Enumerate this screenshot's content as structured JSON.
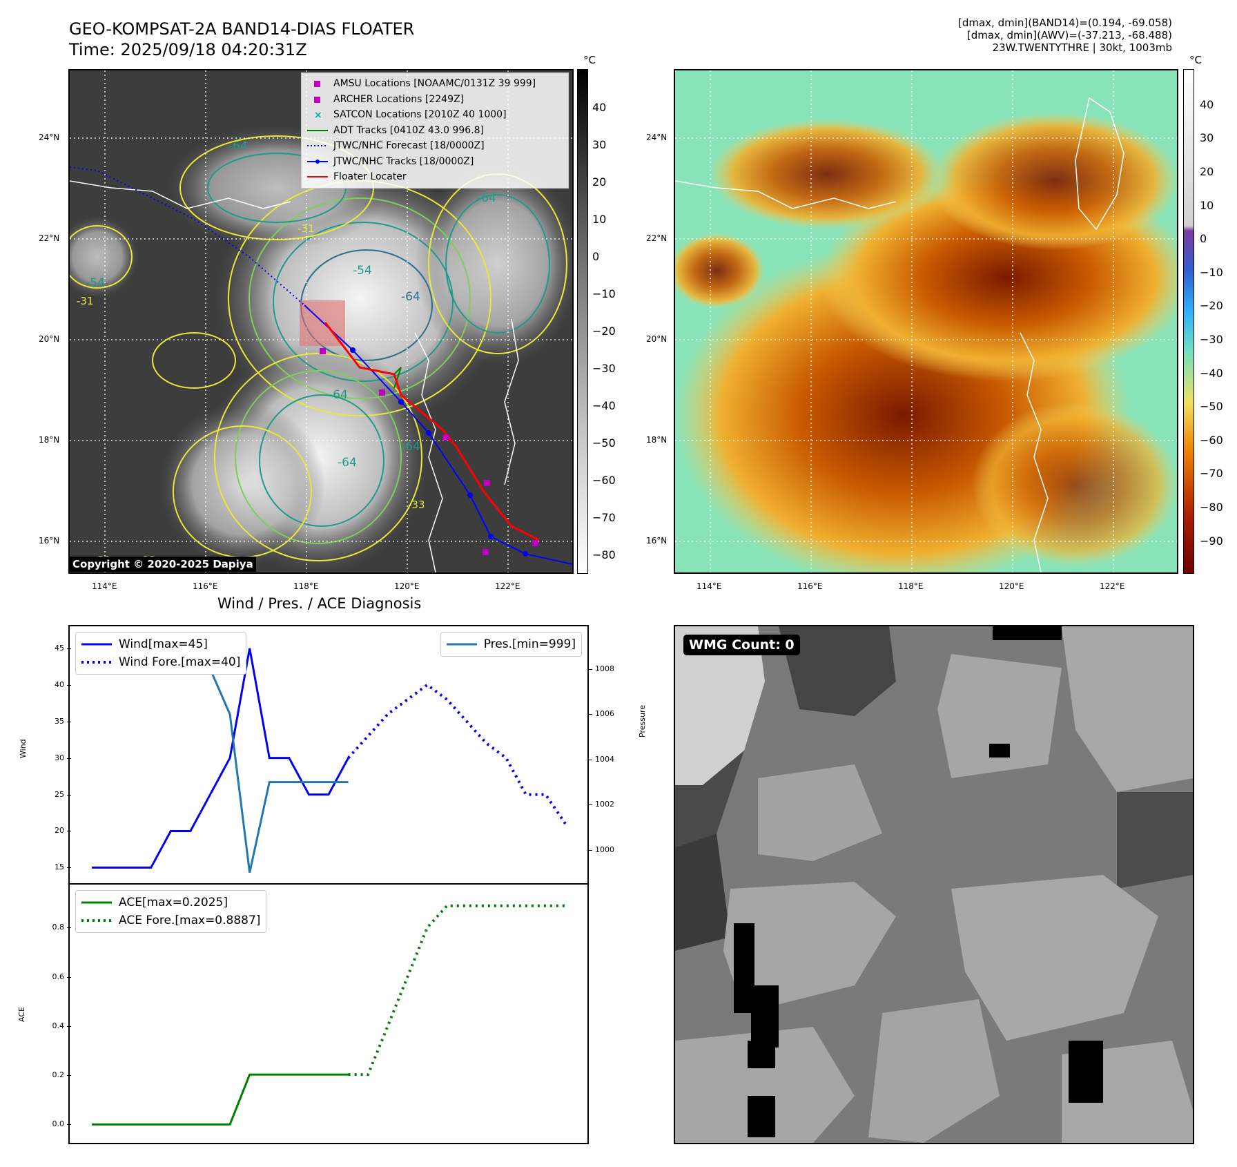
{
  "header": {
    "title_line1": "GEO-KOMPSAT-2A BAND14-DIAS FLOATER",
    "title_line2": "Time: 2025/09/18 04:20:31Z",
    "info_line1": "[dmax, dmin](BAND14)=(0.194, -69.058)",
    "info_line2": "[dmax, dmin](AWV)=(-37.213, -68.488)",
    "info_line3": "23W.TWENTYTHRE | 30kt, 1003mb"
  },
  "map_axes": {
    "lon_labels": [
      "114°E",
      "116°E",
      "118°E",
      "120°E",
      "122°E"
    ],
    "lat_labels": [
      "24°N",
      "22°N",
      "20°N",
      "18°N",
      "16°N"
    ]
  },
  "colorbar_left": {
    "unit": "°C",
    "labels": [
      "40",
      "30",
      "20",
      "10",
      "0",
      "−10",
      "−20",
      "−30",
      "−40",
      "−50",
      "−60",
      "−70",
      "−80"
    ]
  },
  "colorbar_right": {
    "unit": "°C",
    "labels": [
      "40",
      "30",
      "20",
      "10",
      "0",
      "−10",
      "−20",
      "−30",
      "−40",
      "−50",
      "−60",
      "−70",
      "−80",
      "−90"
    ]
  },
  "map_legend": {
    "items": [
      {
        "label": "AMSU Locations [NOAAMC/0131Z 39 999]",
        "color": "#c000c0"
      },
      {
        "label": "ARCHER Locations [2249Z]",
        "color": "#c000c0"
      },
      {
        "label": "SATCON Locations [2010Z 40 1000]",
        "color": "#00b0b0"
      },
      {
        "label": "ADT Tracks [0410Z 43.0 996.8]",
        "color": "#008000"
      },
      {
        "label": "JTWC/NHC Forecast [18/0000Z]",
        "color": "#0000ff"
      },
      {
        "label": "JTWC/NHC Tracks [18/0000Z]",
        "color": "#0000ff"
      },
      {
        "label": "Floater Locater",
        "color": "#ff0000"
      }
    ]
  },
  "contour_labels": [
    "-64",
    "-54",
    "-64",
    "-54",
    "-64",
    "-64",
    "-31",
    "-33",
    "-31",
    "-31",
    "-33",
    "-64",
    "-64"
  ],
  "copyright": "Copyright © 2020-2025 Dapiya",
  "wmg": {
    "label": "WMG Count: 0"
  },
  "chart_data": [
    {
      "type": "line",
      "title": "Wind / Pres. / ACE Diagnosis",
      "ylabel": "Wind",
      "y2label": "Pressure",
      "ylim": [
        14,
        46.5
      ],
      "y2lim": [
        998.9,
        1009.4
      ],
      "yticks": [
        "45",
        "40",
        "35",
        "30",
        "25",
        "20",
        "15"
      ],
      "y2ticks": [
        "1008",
        "1006",
        "1004",
        "1002",
        "1000"
      ],
      "x": [
        0,
        1,
        2,
        3,
        4,
        5,
        6,
        7,
        8,
        9,
        10,
        11,
        12,
        13,
        14,
        15,
        16,
        17,
        18,
        19,
        20,
        21,
        22,
        23,
        24
      ],
      "series": [
        {
          "name": "Wind[max=45]",
          "axis": "left",
          "color": "#0000ee",
          "style": "solid",
          "x": [
            0,
            1,
            2,
            3,
            4,
            5,
            6,
            7,
            8,
            9,
            10,
            11,
            12,
            13
          ],
          "values": [
            15,
            15,
            15,
            15,
            20,
            20,
            25,
            30,
            45,
            30,
            30,
            25,
            25,
            30
          ]
        },
        {
          "name": "Wind Fore.[max=40]",
          "axis": "left",
          "color": "#0000ee",
          "style": "dotted",
          "x": [
            13,
            14,
            15,
            16,
            17,
            18,
            19,
            20,
            21,
            22,
            23,
            24
          ],
          "values": [
            30,
            33,
            36,
            38,
            40,
            38,
            35,
            32,
            30,
            25,
            25,
            21
          ]
        },
        {
          "name": "Pres.[min=999]",
          "axis": "right",
          "color": "#1f77b4",
          "style": "solid",
          "x": [
            0,
            1,
            2,
            3,
            4,
            5,
            6,
            7,
            8,
            9,
            10,
            11,
            12,
            13
          ],
          "values": [
            1009,
            1009,
            1008,
            1008,
            1008,
            1008,
            1008,
            1006,
            999,
            1003,
            1003,
            1003,
            1003,
            1003
          ]
        }
      ]
    },
    {
      "type": "line",
      "ylabel": "ACE",
      "ylim": [
        -0.03,
        0.93
      ],
      "yticks": [
        "0.8",
        "0.6",
        "0.4",
        "0.2",
        "0.0"
      ],
      "series": [
        {
          "name": "ACE[max=0.2025]",
          "color": "#008000",
          "style": "solid",
          "x": [
            0,
            1,
            2,
            3,
            4,
            5,
            6,
            7,
            8,
            9,
            10,
            11,
            12,
            13
          ],
          "values": [
            0,
            0,
            0,
            0,
            0,
            0,
            0,
            0,
            0.2025,
            0.2025,
            0.2025,
            0.2025,
            0.2025,
            0.2025
          ]
        },
        {
          "name": "ACE Fore.[max=0.8887]",
          "color": "#008000",
          "style": "dotted",
          "x": [
            13,
            14,
            15,
            16,
            17,
            18,
            19,
            20,
            21,
            22,
            23,
            24
          ],
          "values": [
            0.2025,
            0.2025,
            0.4,
            0.6,
            0.8,
            0.8887,
            0.8887,
            0.8887,
            0.8887,
            0.8887,
            0.8887,
            0.8887
          ]
        }
      ]
    }
  ]
}
